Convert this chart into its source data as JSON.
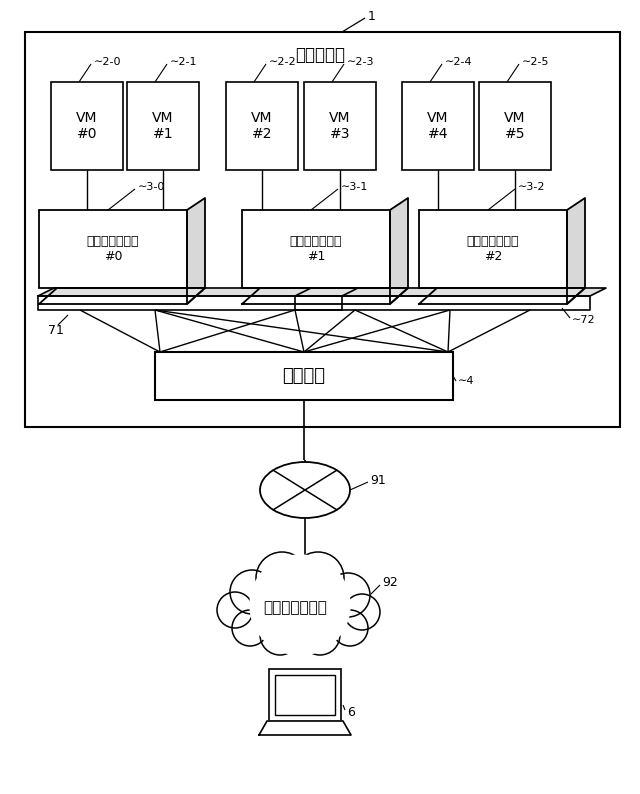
{
  "title_server": "物理サーバ",
  "label_vm": [
    "VM\n#0",
    "VM\n#1",
    "VM\n#2",
    "VM\n#3",
    "VM\n#4",
    "VM\n#5"
  ],
  "label_vm_ids": [
    "2-0",
    "2-1",
    "2-2",
    "2-3",
    "2-4",
    "2-5"
  ],
  "label_disp": [
    "ディスパッチャ\n#0",
    "ディスパッチャ\n#1",
    "ディスパッチャ\n#2"
  ],
  "label_disp_ids": [
    "3-0",
    "3-1",
    "3-2"
  ],
  "label_balancer": "バランサ",
  "label_71": "71",
  "label_72": "72",
  "label_91": "91",
  "label_92": "92",
  "label_6": "6",
  "label_internet": "インターネット",
  "label_1": "1",
  "label_4": "4"
}
